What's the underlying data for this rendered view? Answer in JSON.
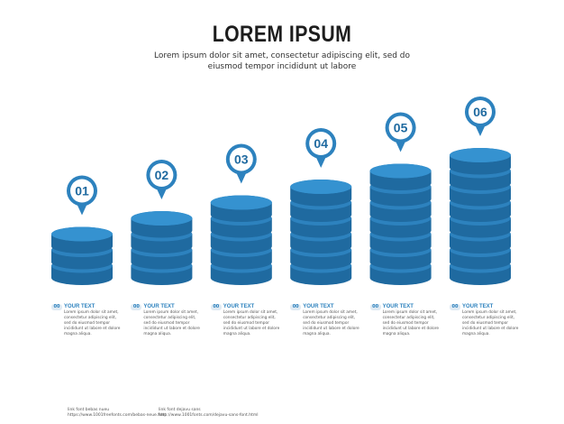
{
  "title": "LOREM IPSUM",
  "subtitle": "Lorem ipsum dolor sit amet, consectetur adipiscing elit, sed do eiusmod tempor incididunt ut labore",
  "colors": {
    "accent": "#2d82be",
    "accent_dark": "#1f6aa0",
    "accent_light": "#3592d0"
  },
  "steps": [
    {
      "number": "01",
      "layers": 3,
      "badge": "00",
      "heading": "YOUR TEXT",
      "body": "Lorem ipsum dolor sit amet, consectetur adipiscing elit, sed do eiusmod tempor incididunt ut labore et dolore magna aliqua."
    },
    {
      "number": "02",
      "layers": 4,
      "badge": "00",
      "heading": "YOUR TEXT",
      "body": "Lorem ipsum dolor sit amet, consectetur adipiscing elit, sed do eiusmod tempor incididunt ut labore et dolore magna aliqua."
    },
    {
      "number": "03",
      "layers": 5,
      "badge": "00",
      "heading": "YOUR TEXT",
      "body": "Lorem ipsum dolor sit amet, consectetur adipiscing elit, sed do eiusmod tempor incididunt ut labore et dolore magna aliqua."
    },
    {
      "number": "04",
      "layers": 6,
      "badge": "00",
      "heading": "YOUR TEXT",
      "body": "Lorem ipsum dolor sit amet, consectetur adipiscing elit, sed do eiusmod tempor incididunt ut labore et dolore magna aliqua."
    },
    {
      "number": "05",
      "layers": 7,
      "badge": "00",
      "heading": "YOUR TEXT",
      "body": "Lorem ipsum dolor sit amet, consectetur adipiscing elit, sed do eiusmod tempor incididunt ut labore et dolore magna aliqua."
    },
    {
      "number": "06",
      "layers": 8,
      "badge": "00",
      "heading": "YOUR TEXT",
      "body": "Lorem ipsum dolor sit amet, consectetur adipiscing elit, sed do eiusmod tempor incididunt ut labore et dolore magna aliqua."
    }
  ],
  "footer": [
    {
      "label": "link font bebas nueu",
      "url": "https://www.1001freefonts.com/bebas-neue.font"
    },
    {
      "label": "link font dejavu sans",
      "url": "http://www.1001fonts.com/dejavu-sans-font.html"
    }
  ]
}
